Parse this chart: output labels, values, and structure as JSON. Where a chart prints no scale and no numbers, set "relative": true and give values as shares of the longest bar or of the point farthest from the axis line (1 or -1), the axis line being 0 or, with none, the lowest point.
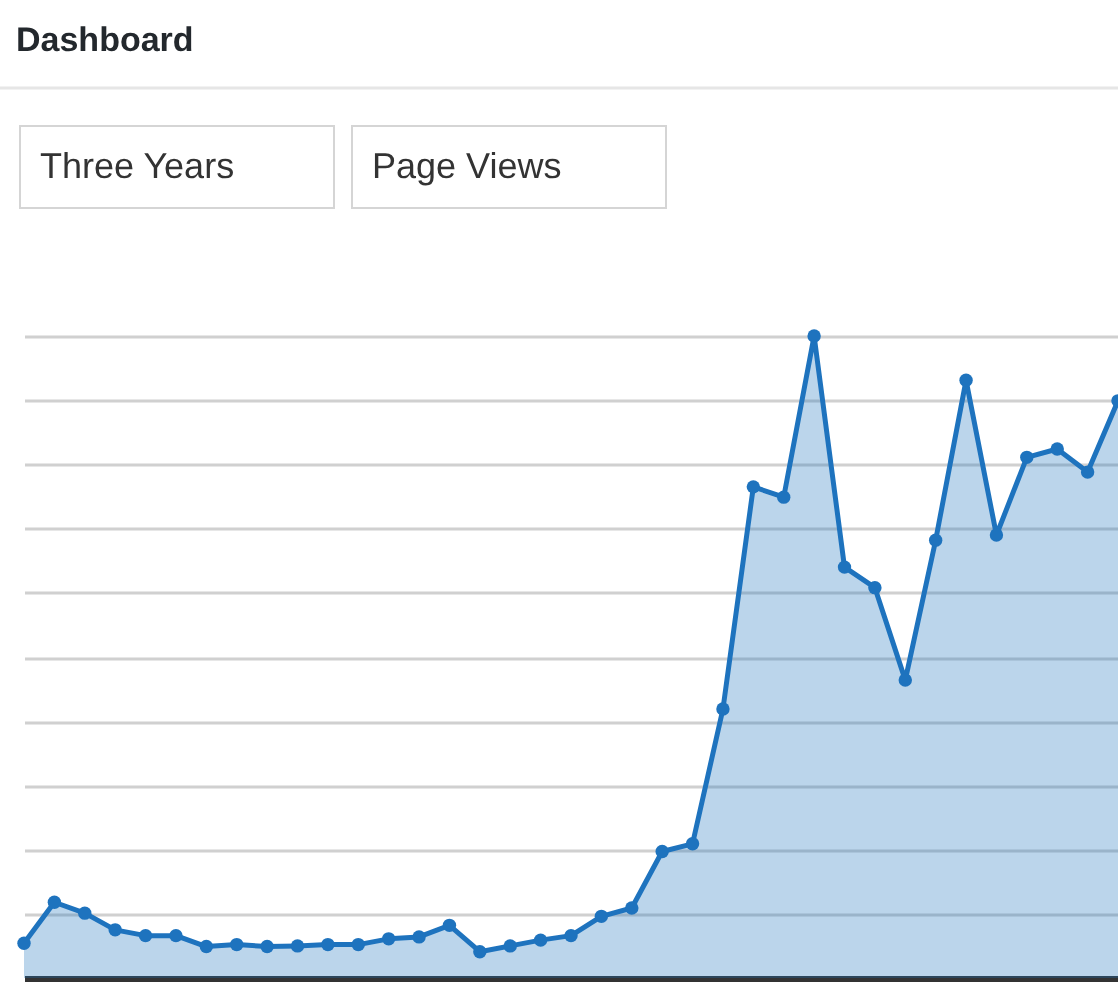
{
  "chart_data": {
    "type": "area",
    "title": "Dashboard",
    "annotations": [
      "Three Years",
      "Page Views"
    ],
    "categories": [
      null,
      null,
      null,
      null,
      null,
      null,
      null,
      null,
      null,
      null,
      null,
      null,
      null,
      null,
      null,
      null,
      null,
      null,
      null,
      null,
      null,
      null,
      null,
      null,
      null,
      null,
      null,
      null,
      null,
      null,
      null,
      null,
      null,
      null,
      null,
      null,
      null
    ],
    "relative": true,
    "marker": "circle",
    "grid": "y",
    "series": [
      {
        "color": "#1e73be",
        "values": [
          0.054,
          0.118,
          0.101,
          0.075,
          0.066,
          0.066,
          0.049,
          0.052,
          0.049,
          0.05,
          0.052,
          0.052,
          0.061,
          0.064,
          0.082,
          0.041,
          0.05,
          0.059,
          0.066,
          0.096,
          0.109,
          0.197,
          0.209,
          0.419,
          0.765,
          0.749,
          1,
          0.64,
          0.608,
          0.464,
          0.682,
          0.931,
          0.69,
          0.811,
          0.824,
          0.788,
          0.899
        ]
      }
    ]
  }
}
